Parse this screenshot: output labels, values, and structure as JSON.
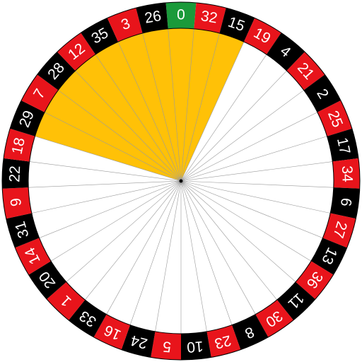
{
  "wheel": {
    "pockets": [
      {
        "number": "0",
        "color": "green"
      },
      {
        "number": "32",
        "color": "red"
      },
      {
        "number": "15",
        "color": "black"
      },
      {
        "number": "19",
        "color": "red"
      },
      {
        "number": "4",
        "color": "black"
      },
      {
        "number": "21",
        "color": "red"
      },
      {
        "number": "2",
        "color": "black"
      },
      {
        "number": "25",
        "color": "red"
      },
      {
        "number": "17",
        "color": "black"
      },
      {
        "number": "34",
        "color": "red"
      },
      {
        "number": "6",
        "color": "black"
      },
      {
        "number": "27",
        "color": "red"
      },
      {
        "number": "13",
        "color": "black"
      },
      {
        "number": "36",
        "color": "red"
      },
      {
        "number": "11",
        "color": "black"
      },
      {
        "number": "30",
        "color": "red"
      },
      {
        "number": "8",
        "color": "black"
      },
      {
        "number": "23",
        "color": "red"
      },
      {
        "number": "10",
        "color": "black"
      },
      {
        "number": "5",
        "color": "red"
      },
      {
        "number": "24",
        "color": "black"
      },
      {
        "number": "16",
        "color": "red"
      },
      {
        "number": "33",
        "color": "black"
      },
      {
        "number": "1",
        "color": "red"
      },
      {
        "number": "20",
        "color": "black"
      },
      {
        "number": "14",
        "color": "red"
      },
      {
        "number": "31",
        "color": "black"
      },
      {
        "number": "9",
        "color": "red"
      },
      {
        "number": "22",
        "color": "black"
      },
      {
        "number": "18",
        "color": "red"
      },
      {
        "number": "29",
        "color": "black"
      },
      {
        "number": "7",
        "color": "red"
      },
      {
        "number": "28",
        "color": "black"
      },
      {
        "number": "12",
        "color": "red"
      },
      {
        "number": "35",
        "color": "black"
      },
      {
        "number": "3",
        "color": "red"
      },
      {
        "number": "26",
        "color": "black"
      }
    ],
    "highlighted_pockets": [
      "29",
      "7",
      "28",
      "12",
      "35",
      "3",
      "26",
      "0",
      "32",
      "15"
    ],
    "colors": {
      "red": "#e8141b",
      "black": "#000000",
      "green": "#1a9a3a",
      "highlight": "#ffc107",
      "spoke": "#9a9a9a"
    }
  }
}
